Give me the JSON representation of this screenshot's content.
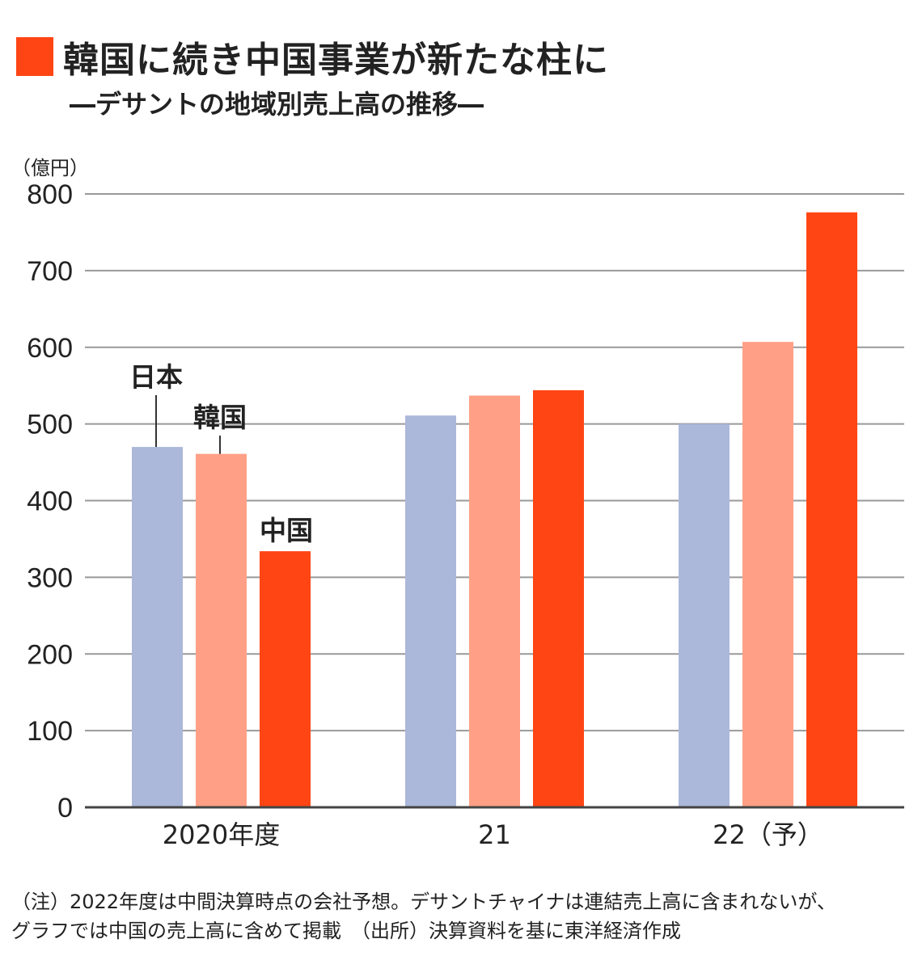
{
  "colors": {
    "accent": "#FF4514",
    "japan": "#ABB8DA",
    "korea": "#FFA086",
    "china": "#FF4514",
    "grid": "#999999",
    "axis": "#444444"
  },
  "header": {
    "title": "韓国に続き中国事業が新たな柱に",
    "subtitle": "―デサントの地域別売上高の推移―"
  },
  "notes": {
    "line1": "（注）2022年度は中間決算時点の会社予想。デサントチャイナは連結売上高に含まれないが、",
    "line2": "グラフでは中国の売上高に含めて掲載　（出所）決算資料を基に東洋経済作成"
  },
  "chart_data": {
    "type": "bar",
    "title": "韓国に続き中国事業が新たな柱に",
    "subtitle": "―デサントの地域別売上高の推移―",
    "ylabel": "（億円）",
    "ylim": [
      0,
      800
    ],
    "yticks": [
      0,
      100,
      200,
      300,
      400,
      500,
      600,
      700,
      800
    ],
    "grid": true,
    "categories": [
      "2020年度",
      "21",
      "22（予）"
    ],
    "series": [
      {
        "name": "日本",
        "values": [
          470,
          511,
          500
        ]
      },
      {
        "name": "韓国",
        "values": [
          461,
          537,
          607
        ]
      },
      {
        "name": "中国",
        "values": [
          334,
          544,
          776
        ]
      }
    ]
  }
}
